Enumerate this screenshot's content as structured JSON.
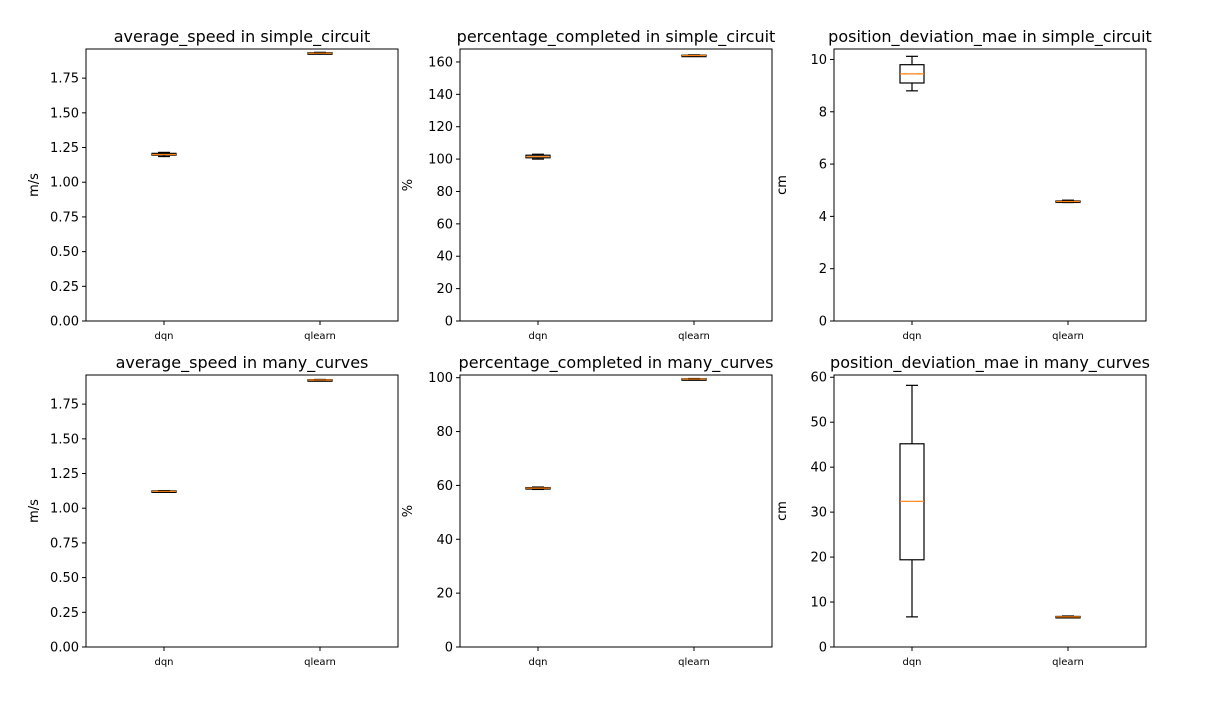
{
  "chart_data": [
    {
      "type": "boxplot",
      "title": "average_speed in simple_circuit",
      "ylabel": "m/s",
      "ylim": [
        0,
        1.96
      ],
      "yticks": [
        0.0,
        0.25,
        0.5,
        0.75,
        1.0,
        1.25,
        1.5,
        1.75
      ],
      "ytick_labels": [
        "0.00",
        "0.25",
        "0.50",
        "0.75",
        "1.00",
        "1.25",
        "1.50",
        "1.75"
      ],
      "categories": [
        "dqn",
        "qlearn"
      ],
      "boxes": [
        {
          "whisker_low": 1.185,
          "q1": 1.195,
          "median": 1.2,
          "q3": 1.208,
          "whisker_high": 1.215
        },
        {
          "whisker_low": 1.925,
          "q1": 1.928,
          "median": 1.93,
          "q3": 1.933,
          "whisker_high": 1.936
        }
      ]
    },
    {
      "type": "boxplot",
      "title": "percentage_completed in simple_circuit",
      "ylabel": "%",
      "ylim": [
        0,
        168
      ],
      "yticks": [
        0,
        20,
        40,
        60,
        80,
        100,
        120,
        140,
        160
      ],
      "ytick_labels": [
        "0",
        "20",
        "40",
        "60",
        "80",
        "100",
        "120",
        "140",
        "160"
      ],
      "categories": [
        "dqn",
        "qlearn"
      ],
      "boxes": [
        {
          "whisker_low": 100,
          "q1": 100.8,
          "median": 101.5,
          "q3": 102.4,
          "whisker_high": 103
        },
        {
          "whisker_low": 163.6,
          "q1": 163.8,
          "median": 164,
          "q3": 164.2,
          "whisker_high": 164.4
        }
      ]
    },
    {
      "type": "boxplot",
      "title": "position_deviation_mae in simple_circuit",
      "ylabel": "cm",
      "ylim": [
        0,
        10.4
      ],
      "yticks": [
        0,
        2,
        4,
        6,
        8,
        10
      ],
      "ytick_labels": [
        "0",
        "2",
        "4",
        "6",
        "8",
        "10"
      ],
      "categories": [
        "dqn",
        "qlearn"
      ],
      "boxes": [
        {
          "whisker_low": 8.8,
          "q1": 9.1,
          "median": 9.45,
          "q3": 9.8,
          "whisker_high": 10.12
        },
        {
          "whisker_low": 4.53,
          "q1": 4.55,
          "median": 4.57,
          "q3": 4.59,
          "whisker_high": 4.62
        }
      ]
    },
    {
      "type": "boxplot",
      "title": "average_speed in many_curves",
      "ylabel": "m/s",
      "ylim": [
        0,
        1.96
      ],
      "yticks": [
        0.0,
        0.25,
        0.5,
        0.75,
        1.0,
        1.25,
        1.5,
        1.75
      ],
      "ytick_labels": [
        "0.00",
        "0.25",
        "0.50",
        "0.75",
        "1.00",
        "1.25",
        "1.50",
        "1.75"
      ],
      "categories": [
        "dqn",
        "qlearn"
      ],
      "boxes": [
        {
          "whisker_low": 1.118,
          "q1": 1.12,
          "median": 1.122,
          "q3": 1.125,
          "whisker_high": 1.127
        },
        {
          "whisker_low": 1.92,
          "q1": 1.922,
          "median": 1.924,
          "q3": 1.926,
          "whisker_high": 1.928
        }
      ]
    },
    {
      "type": "boxplot",
      "title": "percentage_completed in many_curves",
      "ylabel": "%",
      "ylim": [
        0,
        101
      ],
      "yticks": [
        0,
        20,
        40,
        60,
        80,
        100
      ],
      "ytick_labels": [
        "0",
        "20",
        "40",
        "60",
        "80",
        "100"
      ],
      "categories": [
        "dqn",
        "qlearn"
      ],
      "boxes": [
        {
          "whisker_low": 58.5,
          "q1": 58.8,
          "median": 59,
          "q3": 59.2,
          "whisker_high": 59.4
        },
        {
          "whisker_low": 99.3,
          "q1": 99.4,
          "median": 99.5,
          "q3": 99.6,
          "whisker_high": 99.7
        }
      ]
    },
    {
      "type": "boxplot",
      "title": "position_deviation_mae in many_curves",
      "ylabel": "cm",
      "ylim": [
        0,
        60.5
      ],
      "yticks": [
        0,
        10,
        20,
        30,
        40,
        50,
        60
      ],
      "ytick_labels": [
        "0",
        "10",
        "20",
        "30",
        "40",
        "50",
        "60"
      ],
      "categories": [
        "dqn",
        "qlearn"
      ],
      "boxes": [
        {
          "whisker_low": 6.7,
          "q1": 19.4,
          "median": 32.4,
          "q3": 45.2,
          "whisker_high": 58.2
        },
        {
          "whisker_low": 6.5,
          "q1": 6.6,
          "median": 6.7,
          "q3": 6.8,
          "whisker_high": 6.9
        }
      ]
    }
  ],
  "colors": {
    "median": "#ff7f0e",
    "box": "#000000",
    "axes": "#000000",
    "background": "#ffffff"
  }
}
